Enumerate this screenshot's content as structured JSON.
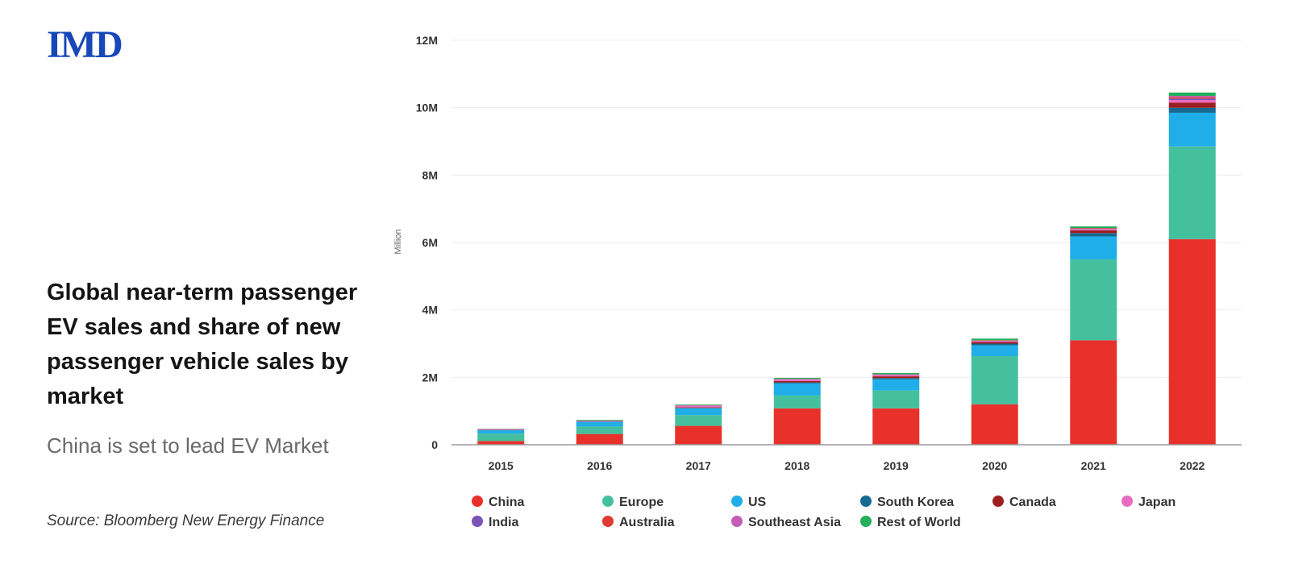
{
  "logo": "IMD",
  "left_panel": {
    "title": "Global near-term passenger EV sales and share of new passenger vehicle sales by market",
    "subtitle": "China is set to lead EV Market",
    "source": "Source: Bloomberg New Energy Finance"
  },
  "chart_data": {
    "type": "bar",
    "stacked": true,
    "categories": [
      "2015",
      "2016",
      "2017",
      "2018",
      "2019",
      "2020",
      "2021",
      "2022"
    ],
    "ylabel": "Million",
    "ylim": [
      0,
      12000000
    ],
    "yticks": [
      0,
      2000000,
      4000000,
      6000000,
      8000000,
      10000000,
      12000000
    ],
    "ytick_labels": [
      "0",
      "2M",
      "4M",
      "6M",
      "8M",
      "10M",
      "12M"
    ],
    "grid": true,
    "legend_position": "bottom",
    "series": [
      {
        "name": "China",
        "color": "#e8312a",
        "values": [
          110000,
          320000,
          560000,
          1080000,
          1080000,
          1200000,
          3100000,
          6100000
        ]
      },
      {
        "name": "Europe",
        "color": "#45c09e",
        "values": [
          220000,
          220000,
          320000,
          380000,
          530000,
          1430000,
          2400000,
          2750000
        ]
      },
      {
        "name": "US",
        "color": "#20aee8",
        "values": [
          100000,
          140000,
          200000,
          360000,
          330000,
          320000,
          680000,
          1000000
        ]
      },
      {
        "name": "South Korea",
        "color": "#156a8f",
        "values": [
          5000,
          8000,
          15000,
          30000,
          40000,
          50000,
          100000,
          150000
        ]
      },
      {
        "name": "Canada",
        "color": "#9c1f1f",
        "values": [
          5000,
          8000,
          15000,
          40000,
          50000,
          50000,
          80000,
          150000
        ]
      },
      {
        "name": "Japan",
        "color": "#e86bc1",
        "values": [
          25000,
          25000,
          50000,
          50000,
          40000,
          30000,
          30000,
          80000
        ]
      },
      {
        "name": "India",
        "color": "#7a55b5",
        "values": [
          0,
          0,
          5000,
          5000,
          5000,
          5000,
          10000,
          40000
        ]
      },
      {
        "name": "Australia",
        "color": "#e03a33",
        "values": [
          0,
          0,
          5000,
          5000,
          10000,
          10000,
          20000,
          40000
        ]
      },
      {
        "name": "Southeast Asia",
        "color": "#c45cb8",
        "values": [
          0,
          0,
          5000,
          5000,
          5000,
          5000,
          10000,
          40000
        ]
      },
      {
        "name": "Rest of World",
        "color": "#23b05a",
        "values": [
          10000,
          20000,
          20000,
          30000,
          40000,
          50000,
          50000,
          100000
        ]
      }
    ]
  }
}
